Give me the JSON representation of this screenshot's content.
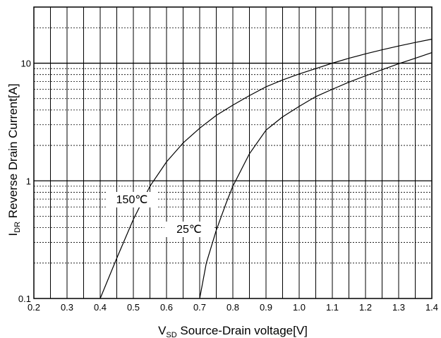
{
  "chart_data": {
    "type": "line",
    "xscale": "linear",
    "yscale": "log",
    "xlim": [
      0.2,
      1.4
    ],
    "ylim": [
      0.1,
      30
    ],
    "x_ticks": [
      0.2,
      0.3,
      0.4,
      0.5,
      0.6,
      0.7,
      0.8,
      0.9,
      1.0,
      1.1,
      1.2,
      1.3,
      1.4
    ],
    "x_tick_labels": [
      "0.2",
      "0.3",
      "0.4",
      "0.5",
      "0.6",
      "0.7",
      "0.8",
      "0.9",
      "1.0",
      "1.1",
      "1.2",
      "1.3",
      "1.4"
    ],
    "y_ticks": [
      0.1,
      1,
      10
    ],
    "y_tick_labels": [
      "0.1",
      "1",
      "10"
    ],
    "grid": true,
    "xlabel": {
      "main": "V",
      "sub": "SD",
      "text": " Source-Drain voltage[V]"
    },
    "ylabel": {
      "main": "I",
      "sub": "DR",
      "text": " Reverse Drain Current[A]"
    },
    "series": [
      {
        "name": "150℃",
        "x": [
          0.4,
          0.45,
          0.5,
          0.55,
          0.6,
          0.65,
          0.7,
          0.75,
          0.8,
          0.85,
          0.9,
          0.95,
          1.0,
          1.05,
          1.1,
          1.15,
          1.2,
          1.25,
          1.3,
          1.35,
          1.4
        ],
        "y": [
          0.1,
          0.22,
          0.47,
          0.9,
          1.45,
          2.1,
          2.8,
          3.6,
          4.4,
          5.3,
          6.3,
          7.2,
          8.1,
          9.0,
          10.0,
          11.0,
          12.0,
          13.0,
          14.0,
          15.0,
          16.0
        ]
      },
      {
        "name": "25℃",
        "x": [
          0.7,
          0.72,
          0.75,
          0.78,
          0.8,
          0.85,
          0.9,
          0.95,
          1.0,
          1.05,
          1.1,
          1.15,
          1.2,
          1.25,
          1.3,
          1.35,
          1.4
        ],
        "y": [
          0.1,
          0.2,
          0.38,
          0.65,
          0.9,
          1.7,
          2.7,
          3.5,
          4.3,
          5.2,
          6.0,
          6.9,
          7.8,
          8.8,
          9.9,
          11.0,
          12.3
        ]
      }
    ],
    "annotations": [
      {
        "text": "150℃",
        "series": "150℃"
      },
      {
        "text": "25℃",
        "series": "25℃"
      }
    ]
  }
}
